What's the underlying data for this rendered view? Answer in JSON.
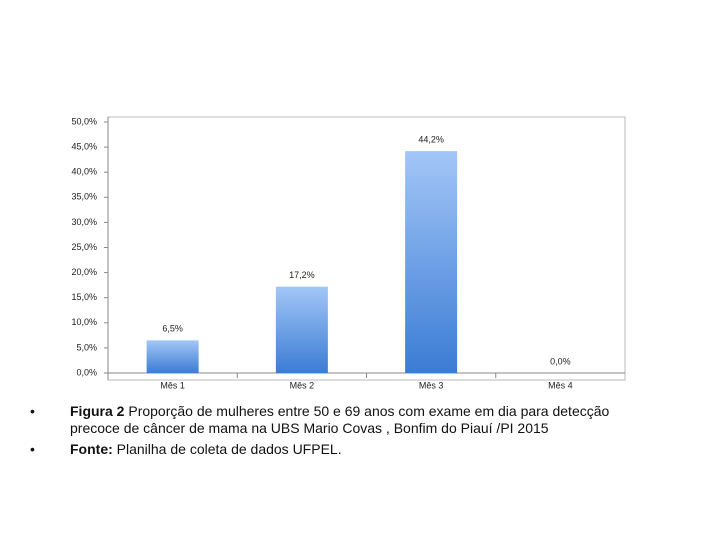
{
  "chart_data": {
    "type": "bar",
    "categories": [
      "Mês 1",
      "Mês 2",
      "Mês 3",
      "Mês 4"
    ],
    "values": [
      6.5,
      17.2,
      44.2,
      0
    ],
    "value_labels": [
      "6,5%",
      "17,2%",
      "44,2%",
      "0,0%"
    ],
    "ylim": [
      0,
      50
    ],
    "yticks": [
      {
        "value": 0,
        "label": "0,0%"
      },
      {
        "value": 5,
        "label": "5,0%"
      },
      {
        "value": 10,
        "label": "10,0%"
      },
      {
        "value": 15,
        "label": "15,0%"
      },
      {
        "value": 20,
        "label": "20,0%"
      },
      {
        "value": 25,
        "label": "25,0%"
      },
      {
        "value": 30,
        "label": "30,0%"
      },
      {
        "value": 35,
        "label": "35,0%"
      },
      {
        "value": 40,
        "label": "40,0%"
      },
      {
        "value": 45,
        "label": "45,0%"
      },
      {
        "value": 50,
        "label": "50,0%"
      }
    ],
    "color": "#5b93e0",
    "grid": false
  },
  "caption": [
    {
      "label": "Figura 2",
      "text": " Proporção de mulheres entre 50 e 69 anos com exame em dia para detecção precoce de câncer de mama na UBS Mario Covas , Bonfim do Piauí /PI 2015"
    },
    {
      "label": "Fonte:",
      "text": " Planilha de coleta de dados UFPEL."
    }
  ]
}
